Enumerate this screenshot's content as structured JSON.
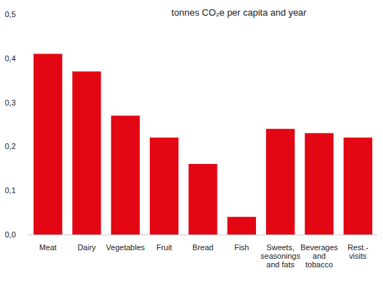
{
  "chart_data": {
    "type": "bar",
    "title": "tonnes CO₂e per capita and year",
    "categories": [
      "Meat",
      "Dairy",
      "Vegetables",
      "Fruit",
      "Bread",
      "Fish",
      "Sweets,\nseasonings\nand fats",
      "Beverages\nand\ntobacco",
      "Rest.-\nvisits"
    ],
    "values": [
      0.41,
      0.37,
      0.27,
      0.22,
      0.16,
      0.04,
      0.24,
      0.23,
      0.22
    ],
    "color": "#e30613",
    "ylim": [
      0,
      0.5
    ],
    "yticks": [
      {
        "value": 0,
        "label": "0,0"
      },
      {
        "value": 0.1,
        "label": "0,1"
      },
      {
        "value": 0.2,
        "label": "0,2"
      },
      {
        "value": 0.3,
        "label": "0,3"
      },
      {
        "value": 0.4,
        "label": "0,4"
      },
      {
        "value": 0.5,
        "label": "0,5"
      }
    ],
    "grid": false
  }
}
